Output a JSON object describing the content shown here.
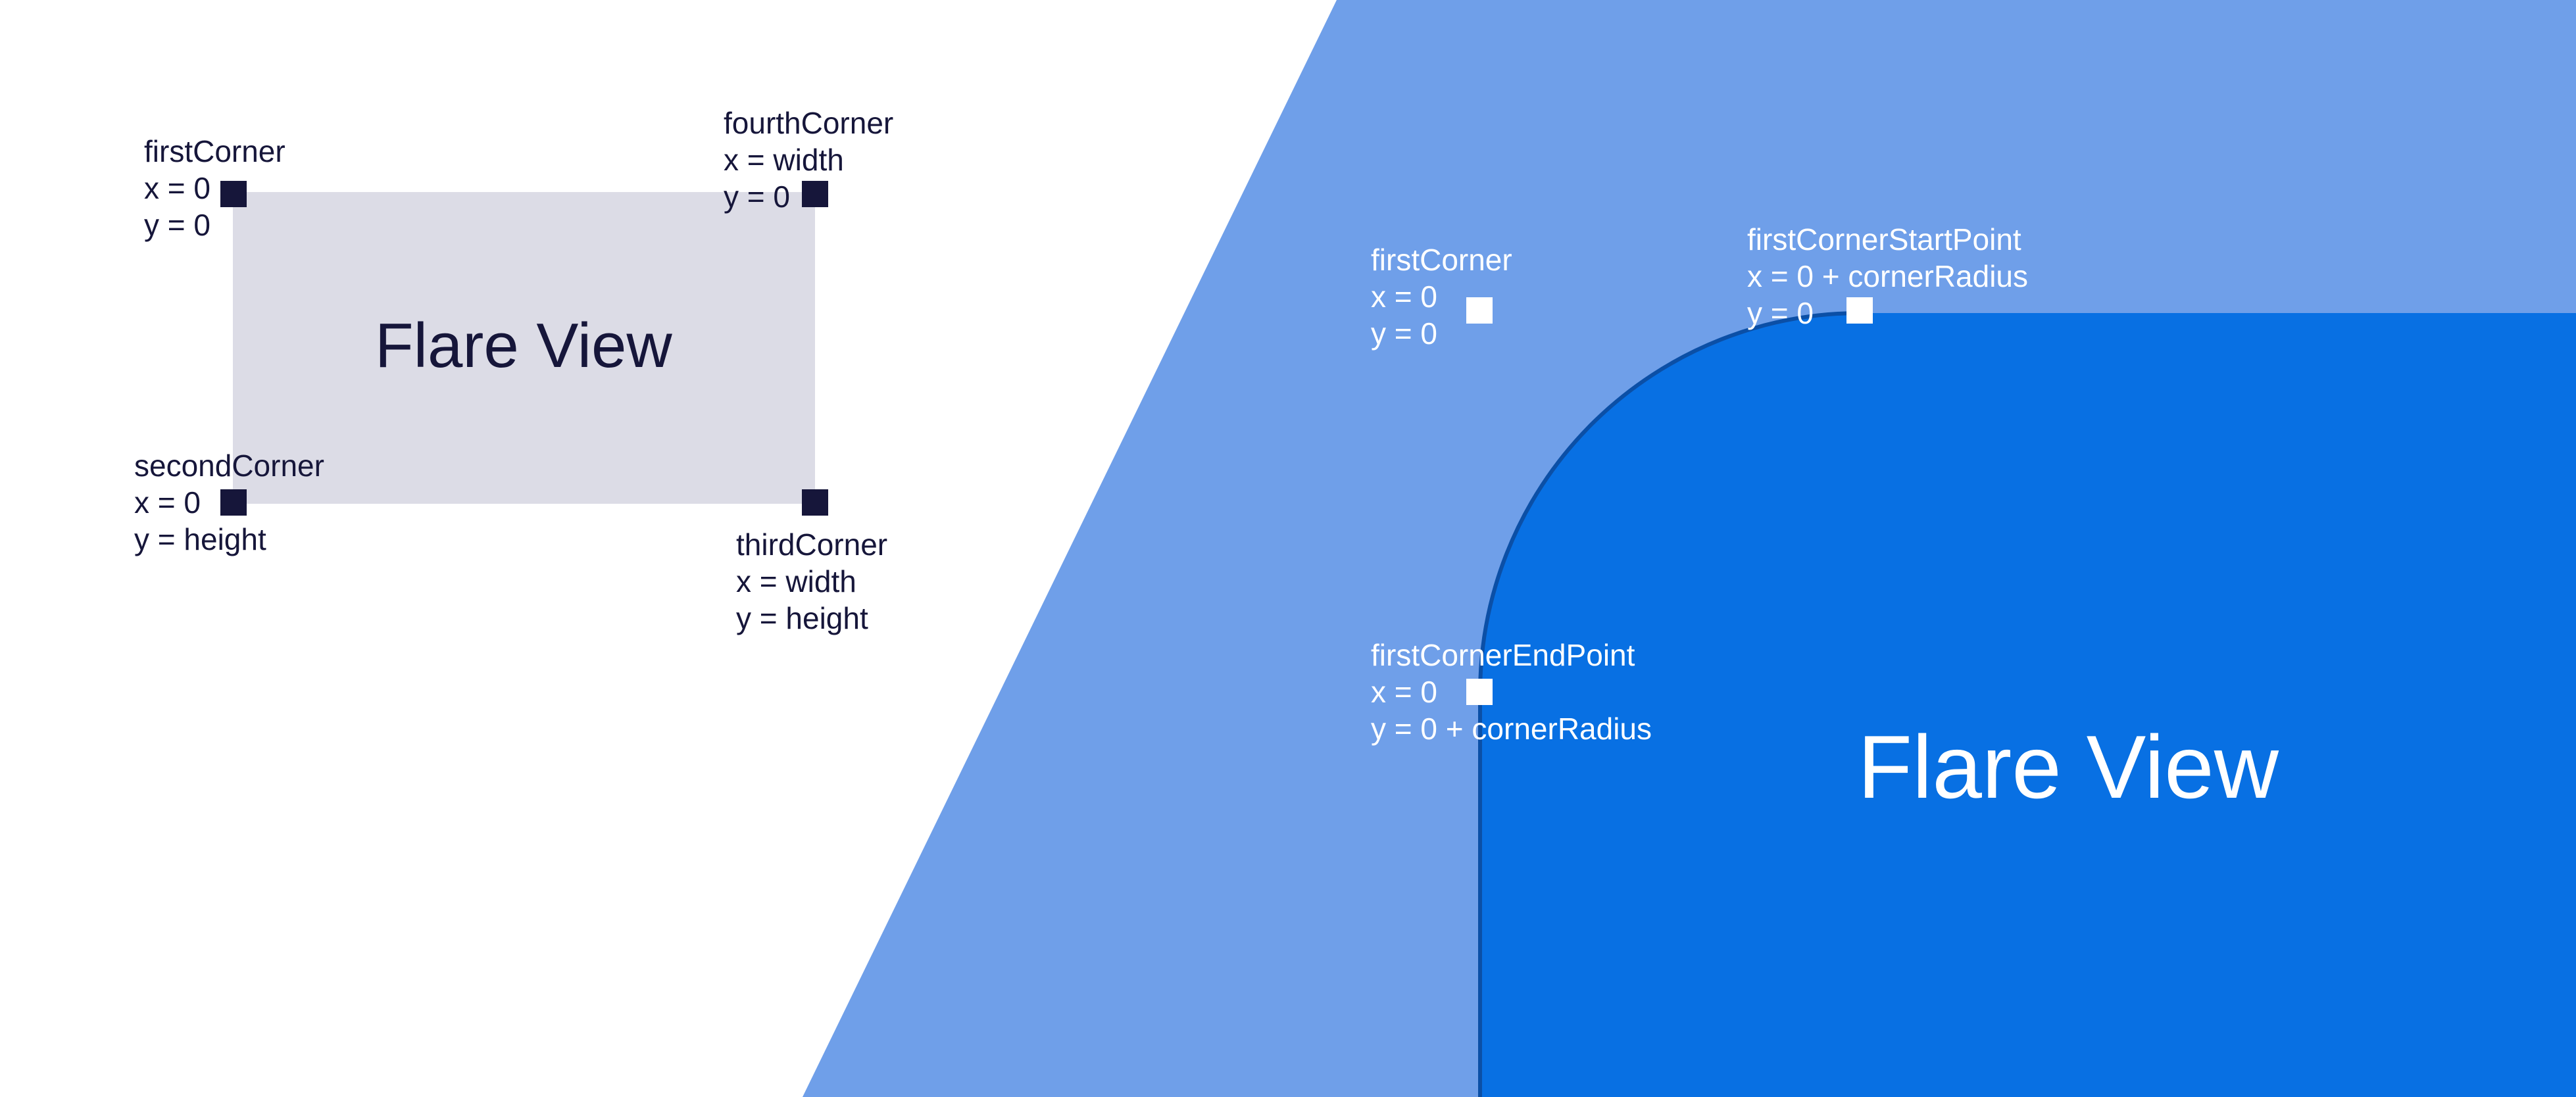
{
  "colors": {
    "background": "#ffffff",
    "light_panel": "#6f9fe9",
    "view_fill_right": "#0870e3",
    "view_fill_left": "#dcdce6",
    "marker_dark": "#16163a",
    "marker_light": "#ffffff",
    "curve_stroke": "#0b4fa6"
  },
  "left_diagram": {
    "view_label": "Flare View",
    "first_corner": {
      "name": "firstCorner",
      "x": "x = 0",
      "y": "y = 0"
    },
    "second_corner": {
      "name": "secondCorner",
      "x": "x = 0",
      "y": "y = height"
    },
    "third_corner": {
      "name": "thirdCorner",
      "x": "x = width",
      "y": "y = height"
    },
    "fourth_corner": {
      "name": "fourthCorner",
      "x": "x = width",
      "y": "y = 0"
    }
  },
  "right_diagram": {
    "view_label": "Flare View",
    "first_corner": {
      "name": "firstCorner",
      "x": "x = 0",
      "y": "y = 0"
    },
    "start_point": {
      "name": "firstCornerStartPoint",
      "x": "x = 0 + cornerRadius",
      "y": "y = 0"
    },
    "end_point": {
      "name": "firstCornerEndPoint",
      "x": "x = 0",
      "y": "y = 0 + cornerRadius"
    }
  }
}
